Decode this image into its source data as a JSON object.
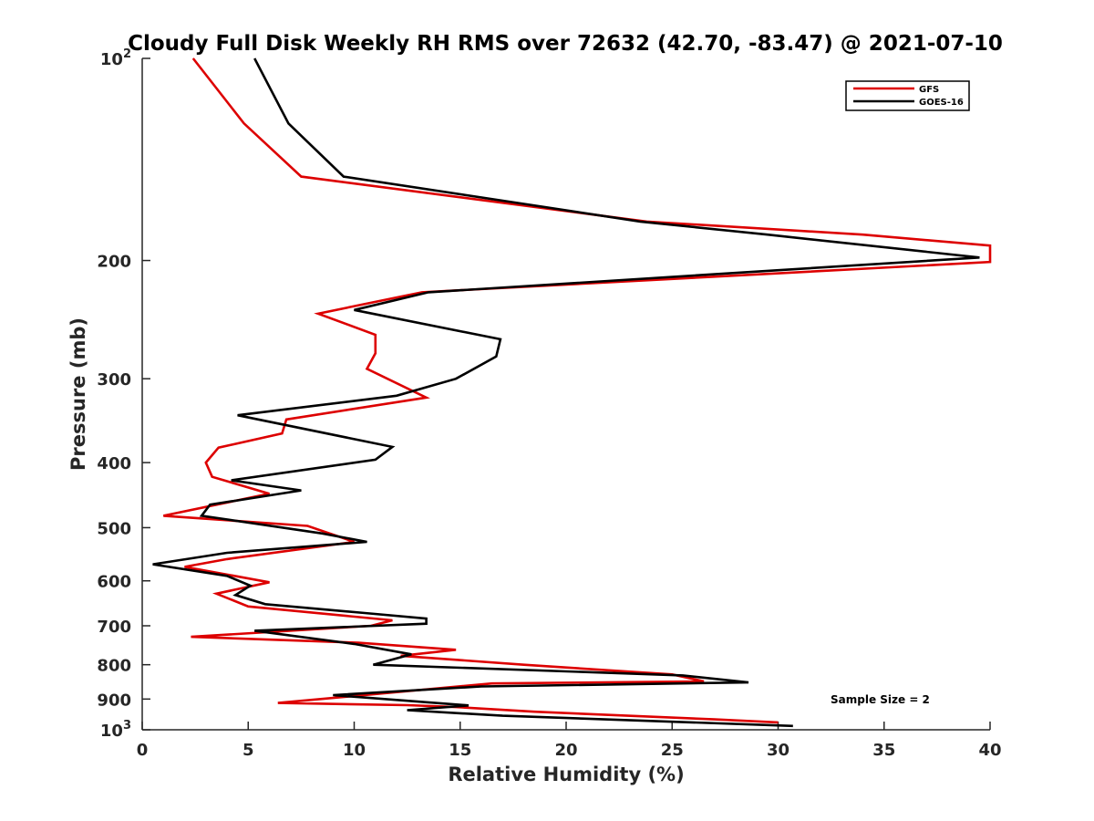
{
  "chart_data": {
    "type": "line",
    "title": "Cloudy Full Disk Weekly RH RMS over 72632 (42.70, -83.47) @ 2021-07-10",
    "xlabel": "Relative Humidity (%)",
    "ylabel": "Pressure (mb)",
    "xlim": [
      0,
      40
    ],
    "ylim": [
      100,
      1000
    ],
    "yscale": "log",
    "y_reversed": true,
    "xticks": [
      0,
      5,
      10,
      15,
      20,
      25,
      30,
      35,
      40
    ],
    "yticks": [
      {
        "value": 100,
        "base": "10",
        "exp": "2"
      },
      {
        "value": 200,
        "label": "200"
      },
      {
        "value": 300,
        "label": "300"
      },
      {
        "value": 400,
        "label": "400"
      },
      {
        "value": 500,
        "label": "500"
      },
      {
        "value": 600,
        "label": "600"
      },
      {
        "value": 700,
        "label": "700"
      },
      {
        "value": 800,
        "label": "800"
      },
      {
        "value": 900,
        "label": "900"
      },
      {
        "value": 1000,
        "base": "10",
        "exp": "3"
      }
    ],
    "grid": false,
    "legend_position": "top-right",
    "series": [
      {
        "name": "GFS",
        "color": "#dd0000",
        "points": [
          [
            2.4,
            100
          ],
          [
            4.8,
            125
          ],
          [
            7.5,
            150
          ],
          [
            23.8,
            175
          ],
          [
            34.0,
            183
          ],
          [
            40.5,
            190
          ],
          [
            41.0,
            201
          ],
          [
            13.2,
            223
          ],
          [
            8.3,
            240
          ],
          [
            11.0,
            258
          ],
          [
            11.0,
            275
          ],
          [
            10.6,
            290
          ],
          [
            13.4,
            320
          ],
          [
            6.8,
            345
          ],
          [
            6.6,
            362
          ],
          [
            3.6,
            380
          ],
          [
            3.0,
            400
          ],
          [
            3.3,
            420
          ],
          [
            6.0,
            445
          ],
          [
            1.0,
            480
          ],
          [
            7.8,
            497
          ],
          [
            10.0,
            525
          ],
          [
            4.0,
            557
          ],
          [
            2.0,
            572
          ],
          [
            6.0,
            603
          ],
          [
            3.5,
            627
          ],
          [
            5.0,
            655
          ],
          [
            11.8,
            687
          ],
          [
            10.8,
            700
          ],
          [
            2.3,
            727
          ],
          [
            10.2,
            742
          ],
          [
            14.8,
            760
          ],
          [
            12.2,
            776
          ],
          [
            18.0,
            800
          ],
          [
            25.0,
            827
          ],
          [
            26.5,
            847
          ],
          [
            16.5,
            853
          ],
          [
            6.4,
            912
          ],
          [
            12.5,
            919
          ],
          [
            14.8,
            925
          ],
          [
            18.5,
            940
          ],
          [
            27.0,
            965
          ],
          [
            30.0,
            975
          ]
        ]
      },
      {
        "name": "GOES-16",
        "color": "#000000",
        "points": [
          [
            5.3,
            100
          ],
          [
            6.9,
            125
          ],
          [
            9.5,
            150
          ],
          [
            23.5,
            175
          ],
          [
            29.5,
            183
          ],
          [
            39.5,
            198
          ],
          [
            13.5,
            223
          ],
          [
            10.0,
            237
          ],
          [
            16.9,
            262
          ],
          [
            16.7,
            278
          ],
          [
            14.8,
            300
          ],
          [
            12.0,
            318
          ],
          [
            4.5,
            340
          ],
          [
            11.8,
            379
          ],
          [
            11.0,
            396
          ],
          [
            4.2,
            425
          ],
          [
            7.5,
            440
          ],
          [
            3.2,
            462
          ],
          [
            2.8,
            480
          ],
          [
            8.5,
            510
          ],
          [
            10.6,
            525
          ],
          [
            4.0,
            545
          ],
          [
            0.5,
            567
          ],
          [
            4.0,
            590
          ],
          [
            5.1,
            610
          ],
          [
            4.4,
            630
          ],
          [
            5.8,
            650
          ],
          [
            10.5,
            670
          ],
          [
            13.4,
            683
          ],
          [
            13.4,
            695
          ],
          [
            5.3,
            712
          ],
          [
            10.0,
            745
          ],
          [
            12.7,
            772
          ],
          [
            10.9,
            800
          ],
          [
            25.5,
            830
          ],
          [
            28.6,
            850
          ],
          [
            16.0,
            862
          ],
          [
            9.0,
            888
          ],
          [
            15.4,
            920
          ],
          [
            12.5,
            935
          ],
          [
            17.0,
            953
          ],
          [
            30.7,
            987
          ]
        ]
      }
    ],
    "annotation": "Sample Size = 2"
  }
}
